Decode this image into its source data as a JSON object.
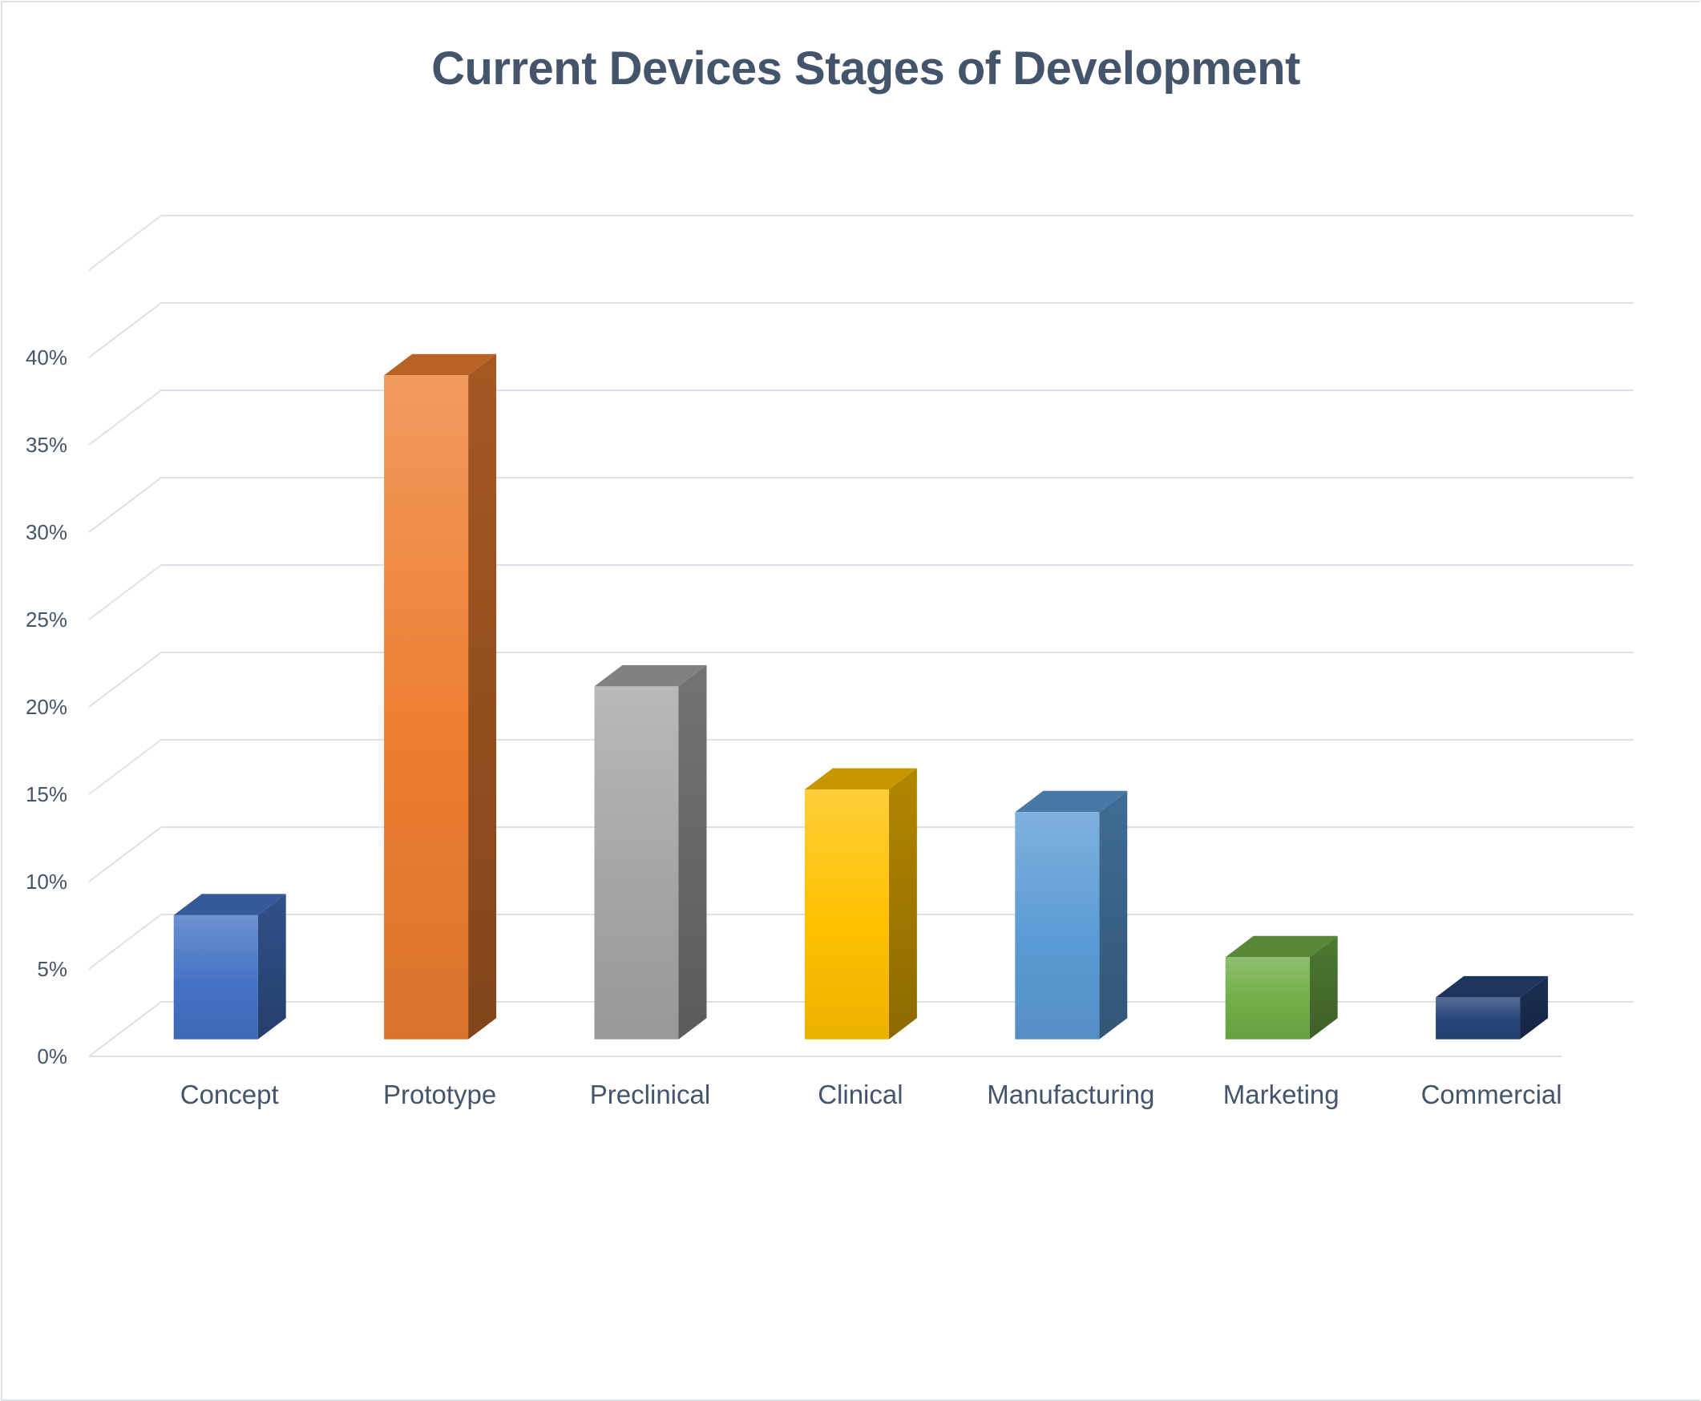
{
  "title": "Current Devices Stages of Development",
  "chart_data": {
    "type": "bar",
    "style": "3d-column",
    "title": "Current Devices Stages of Development",
    "xlabel": "",
    "ylabel": "",
    "categories": [
      "Concept",
      "Prototype",
      "Preclinical",
      "Clinical",
      "Manufacturing",
      "Marketing",
      "Commercial"
    ],
    "values": [
      7.1,
      38.0,
      20.2,
      14.3,
      13.0,
      4.7,
      2.4
    ],
    "value_format": "percent",
    "ylim": [
      0,
      45
    ],
    "yticks": [
      "0%",
      "5%",
      "10%",
      "15%",
      "20%",
      "25%",
      "30%",
      "35%",
      "40%"
    ],
    "grid": true,
    "legend": "none",
    "colors": [
      "#4472c4",
      "#ed7d31",
      "#a5a5a5",
      "#ffc000",
      "#5b9bd5",
      "#70ad47",
      "#264478"
    ]
  }
}
